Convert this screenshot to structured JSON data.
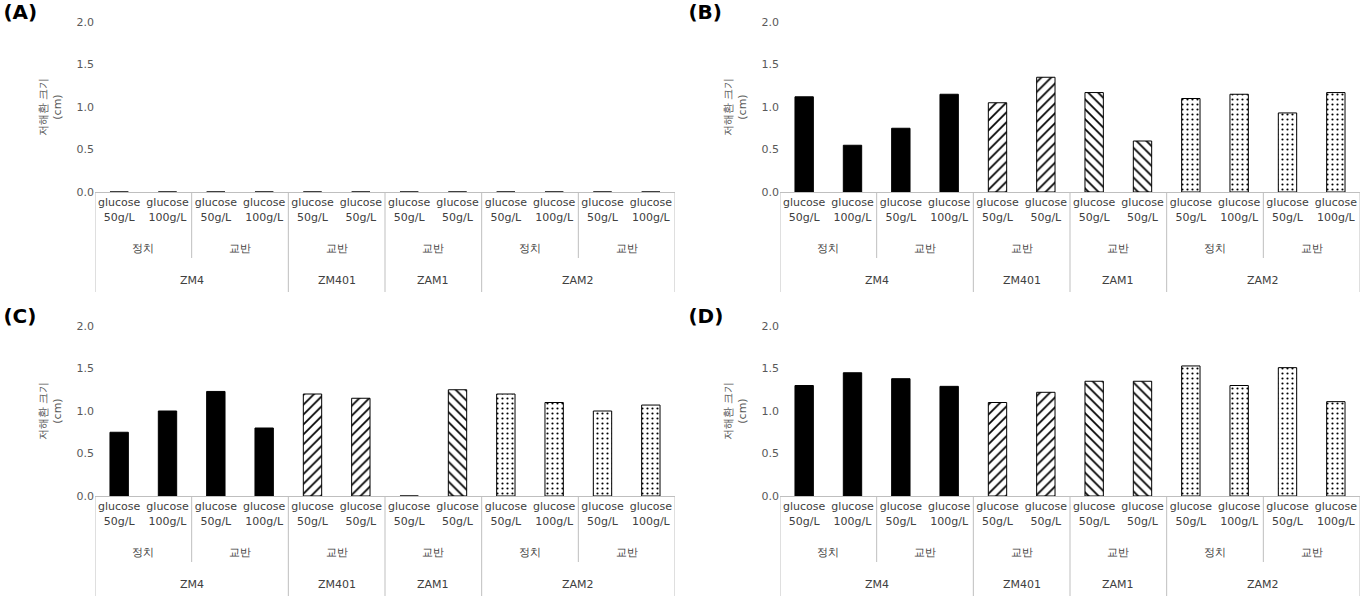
{
  "chart_data": [
    {
      "type": "bar",
      "title": "(A)",
      "y_label": "저해환 크기 (cm)",
      "categories": [
        "glucose 50g/L",
        "glucose 100g/L",
        "glucose 50g/L",
        "glucose 100g/L",
        "glucose 50g/L",
        "glucose 50g/L",
        "glucose 50g/L",
        "glucose 50g/L",
        "glucose 50g/L",
        "glucose 100g/L",
        "glucose 50g/L",
        "glucose 100g/L"
      ],
      "conditions": [
        "정치",
        "정치",
        "교반",
        "교반",
        "교반",
        "교반",
        "교반",
        "교반",
        "정치",
        "정치",
        "교반",
        "교반"
      ],
      "ylim": [
        0,
        2
      ],
      "yticks": [
        {
          "value": 0,
          "label": "0.0"
        },
        {
          "value": 0.5,
          "label": "0.5"
        },
        {
          "value": 1,
          "label": "1.0"
        },
        {
          "value": 1.5,
          "label": "1.5"
        },
        {
          "value": 2,
          "label": "2.0"
        }
      ],
      "grid": false,
      "series": [
        {
          "name": "ZM4",
          "color": "#000000",
          "marker": "solid",
          "values": [
            0,
            0,
            0,
            0,
            null,
            null,
            null,
            null,
            null,
            null,
            null,
            null
          ]
        },
        {
          "name": "ZM401",
          "color": "#ffffff",
          "marker": "hatch_right",
          "values": [
            null,
            null,
            null,
            null,
            0,
            0,
            null,
            null,
            null,
            null,
            null,
            null
          ]
        },
        {
          "name": "ZAM1",
          "color": "#ffffff",
          "marker": "hatch_left",
          "values": [
            null,
            null,
            null,
            null,
            null,
            null,
            0,
            0,
            null,
            null,
            null,
            null
          ]
        },
        {
          "name": "ZAM2",
          "color": "#ffffff",
          "marker": "dots",
          "values": [
            null,
            null,
            null,
            null,
            null,
            null,
            null,
            null,
            0,
            0,
            0,
            0
          ]
        }
      ]
    },
    {
      "type": "bar",
      "title": "(B)",
      "y_label": "저해환 크기 (cm)",
      "categories": [
        "glucose 50g/L",
        "glucose 100g/L",
        "glucose 50g/L",
        "glucose 100g/L",
        "glucose 50g/L",
        "glucose 50g/L",
        "glucose 50g/L",
        "glucose 50g/L",
        "glucose 50g/L",
        "glucose 100g/L",
        "glucose 50g/L",
        "glucose 100g/L"
      ],
      "conditions": [
        "정치",
        "정치",
        "교반",
        "교반",
        "교반",
        "교반",
        "교반",
        "교반",
        "정치",
        "정치",
        "교반",
        "교반"
      ],
      "ylim": [
        0,
        2
      ],
      "yticks": [
        {
          "value": 0,
          "label": "0.0"
        },
        {
          "value": 0.5,
          "label": "0.5"
        },
        {
          "value": 1,
          "label": "1.0"
        },
        {
          "value": 1.5,
          "label": "1.5"
        },
        {
          "value": 2,
          "label": "2.0"
        }
      ],
      "grid": false,
      "series": [
        {
          "name": "ZM4",
          "color": "#000000",
          "marker": "solid",
          "values": [
            1.12,
            0.55,
            0.75,
            1.15,
            null,
            null,
            null,
            null,
            null,
            null,
            null,
            null
          ]
        },
        {
          "name": "ZM401",
          "color": "#ffffff",
          "marker": "hatch_right",
          "values": [
            null,
            null,
            null,
            null,
            1.05,
            1.35,
            null,
            null,
            null,
            null,
            null,
            null
          ]
        },
        {
          "name": "ZAM1",
          "color": "#ffffff",
          "marker": "hatch_left",
          "values": [
            null,
            null,
            null,
            null,
            null,
            null,
            1.17,
            0.6,
            null,
            null,
            null,
            null
          ]
        },
        {
          "name": "ZAM2",
          "color": "#ffffff",
          "marker": "dots",
          "values": [
            null,
            null,
            null,
            null,
            null,
            null,
            null,
            null,
            1.1,
            1.15,
            0.93,
            1.17
          ]
        }
      ]
    },
    {
      "type": "bar",
      "title": "(C)",
      "y_label": "저해환 크기 (cm)",
      "categories": [
        "glucose 50g/L",
        "glucose 100g/L",
        "glucose 50g/L",
        "glucose 100g/L",
        "glucose 50g/L",
        "glucose 50g/L",
        "glucose 50g/L",
        "glucose 50g/L",
        "glucose 50g/L",
        "glucose 100g/L",
        "glucose 50g/L",
        "glucose 100g/L"
      ],
      "conditions": [
        "정치",
        "정치",
        "교반",
        "교반",
        "교반",
        "교반",
        "교반",
        "교반",
        "정치",
        "정치",
        "교반",
        "교반"
      ],
      "ylim": [
        0,
        2
      ],
      "yticks": [
        {
          "value": 0,
          "label": "0.0"
        },
        {
          "value": 0.5,
          "label": "0.5"
        },
        {
          "value": 1,
          "label": "1.0"
        },
        {
          "value": 1.5,
          "label": "1.5"
        },
        {
          "value": 2,
          "label": "2.0"
        }
      ],
      "grid": false,
      "series": [
        {
          "name": "ZM4",
          "color": "#000000",
          "marker": "solid",
          "values": [
            0.75,
            1.0,
            1.23,
            0.8,
            null,
            null,
            null,
            null,
            null,
            null,
            null,
            null
          ]
        },
        {
          "name": "ZM401",
          "color": "#ffffff",
          "marker": "hatch_right",
          "values": [
            null,
            null,
            null,
            null,
            1.2,
            1.15,
            null,
            null,
            null,
            null,
            null,
            null
          ]
        },
        {
          "name": "ZAM1",
          "color": "#ffffff",
          "marker": "hatch_left",
          "values": [
            null,
            null,
            null,
            null,
            null,
            null,
            0,
            1.25,
            null,
            null,
            null,
            null
          ]
        },
        {
          "name": "ZAM2",
          "color": "#ffffff",
          "marker": "dots",
          "values": [
            null,
            null,
            null,
            null,
            null,
            null,
            null,
            null,
            1.2,
            1.1,
            1.0,
            1.07
          ]
        }
      ]
    },
    {
      "type": "bar",
      "title": "(D)",
      "y_label": "저해환 크기 (cm)",
      "categories": [
        "glucose 50g/L",
        "glucose 100g/L",
        "glucose 50g/L",
        "glucose 100g/L",
        "glucose 50g/L",
        "glucose 50g/L",
        "glucose 50g/L",
        "glucose 50g/L",
        "glucose 50g/L",
        "glucose 100g/L",
        "glucose 50g/L",
        "glucose 100g/L"
      ],
      "conditions": [
        "정치",
        "정치",
        "교반",
        "교반",
        "교반",
        "교반",
        "교반",
        "교반",
        "정치",
        "정치",
        "교반",
        "교반"
      ],
      "ylim": [
        0,
        2
      ],
      "yticks": [
        {
          "value": 0,
          "label": "0.0"
        },
        {
          "value": 0.5,
          "label": "0.5"
        },
        {
          "value": 1,
          "label": "1.0"
        },
        {
          "value": 1.5,
          "label": "1.5"
        },
        {
          "value": 2,
          "label": "2.0"
        }
      ],
      "grid": false,
      "series": [
        {
          "name": "ZM4",
          "color": "#000000",
          "marker": "solid",
          "values": [
            1.3,
            1.45,
            1.38,
            1.29,
            null,
            null,
            null,
            null,
            null,
            null,
            null,
            null
          ]
        },
        {
          "name": "ZM401",
          "color": "#ffffff",
          "marker": "hatch_right",
          "values": [
            null,
            null,
            null,
            null,
            1.1,
            1.22,
            null,
            null,
            null,
            null,
            null,
            null
          ]
        },
        {
          "name": "ZAM1",
          "color": "#ffffff",
          "marker": "hatch_left",
          "values": [
            null,
            null,
            null,
            null,
            null,
            null,
            1.35,
            1.35,
            null,
            null,
            null,
            null
          ]
        },
        {
          "name": "ZAM2",
          "color": "#ffffff",
          "marker": "dots",
          "values": [
            null,
            null,
            null,
            null,
            null,
            null,
            null,
            null,
            1.53,
            1.3,
            1.51,
            1.11
          ]
        }
      ]
    }
  ]
}
